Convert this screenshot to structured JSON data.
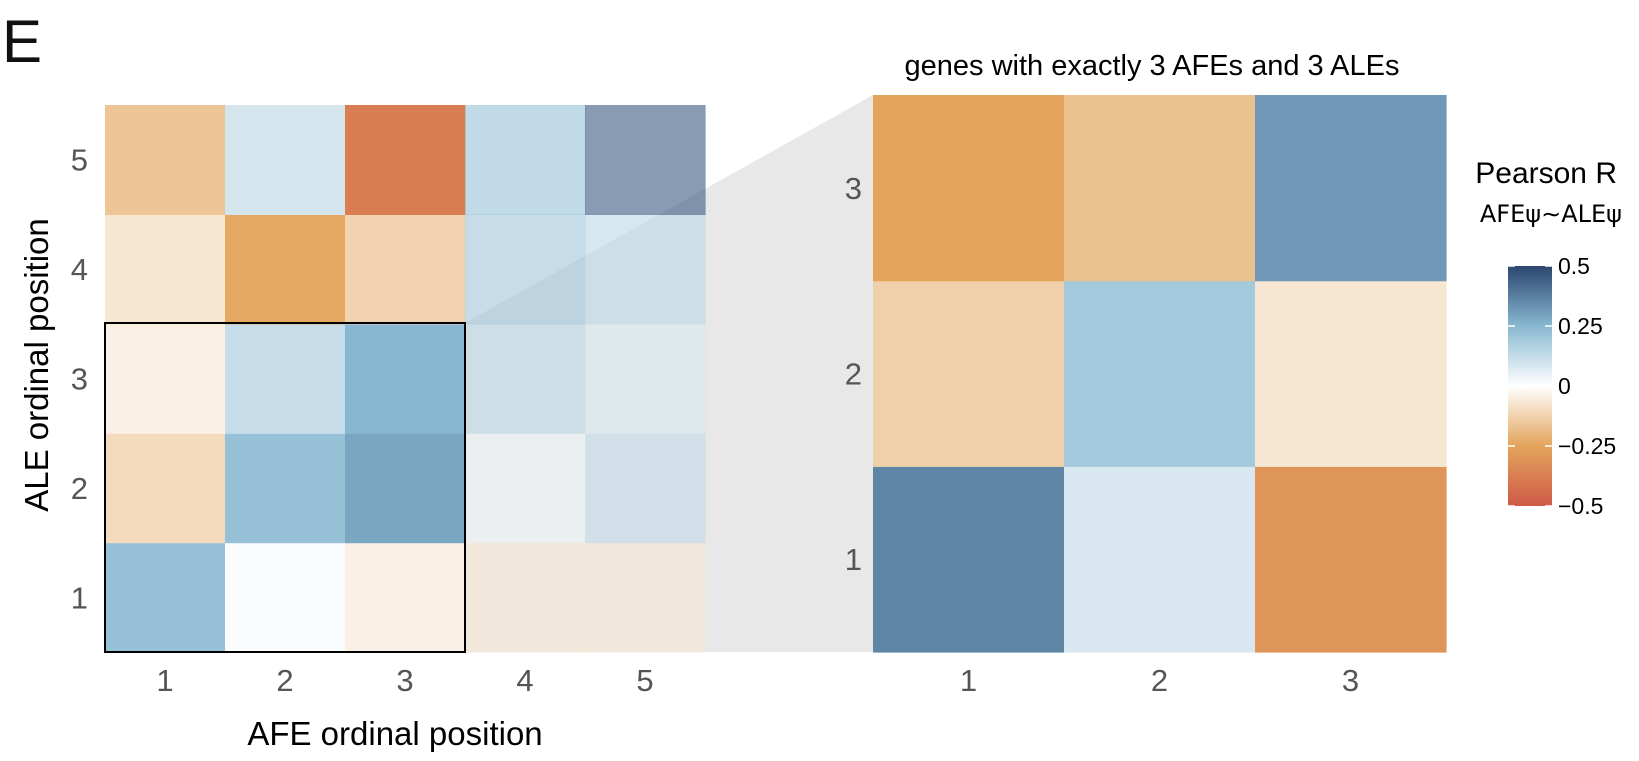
{
  "panel_label": "E",
  "chart_data": [
    {
      "type": "heatmap",
      "xlabel": "AFE ordinal position",
      "ylabel": "ALE ordinal position",
      "x_categories": [
        "1",
        "2",
        "3",
        "4",
        "5"
      ],
      "y_categories": [
        "1",
        "2",
        "3",
        "4",
        "5"
      ],
      "values": [
        [
          0.22,
          0.01,
          -0.04,
          -0.07,
          -0.07
        ],
        [
          -0.1,
          0.22,
          0.29,
          0.04,
          0.13
        ],
        [
          -0.04,
          0.12,
          0.25,
          0.14,
          0.08
        ],
        [
          -0.07,
          -0.24,
          -0.12,
          0.2,
          0.14
        ],
        [
          -0.16,
          0.09,
          -0.38,
          0.22,
          0.46
        ]
      ],
      "faded_columns": [
        "4",
        "5"
      ],
      "highlight_box": {
        "x": [
          "1",
          "3"
        ],
        "y": [
          "1",
          "3"
        ]
      }
    },
    {
      "type": "heatmap",
      "title": "genes with exactly 3 AFEs and 3 ALEs",
      "x_categories": [
        "1",
        "2",
        "3"
      ],
      "y_categories": [
        "1",
        "2",
        "3"
      ],
      "values": [
        [
          0.36,
          0.08,
          -0.3
        ],
        [
          -0.13,
          0.19,
          -0.07
        ],
        [
          -0.25,
          -0.17,
          0.32
        ]
      ]
    }
  ],
  "legend": {
    "title": "Pearson R",
    "subtitle": "AFEψ∼ALEψ",
    "range": [
      -0.5,
      0.5
    ],
    "ticks": [
      {
        "value": 0.5,
        "label": "0.5"
      },
      {
        "value": 0.25,
        "label": "0.25"
      },
      {
        "value": 0,
        "label": "0"
      },
      {
        "value": -0.25,
        "label": "−0.25"
      },
      {
        "value": -0.5,
        "label": "−0.5"
      }
    ],
    "color_stops": [
      {
        "value": -0.5,
        "color": "#d05a48"
      },
      {
        "value": -0.25,
        "color": "#e3a45c"
      },
      {
        "value": 0,
        "color": "#ffffff"
      },
      {
        "value": 0.25,
        "color": "#88b8d1"
      },
      {
        "value": 0.5,
        "color": "#2c4670"
      }
    ]
  }
}
